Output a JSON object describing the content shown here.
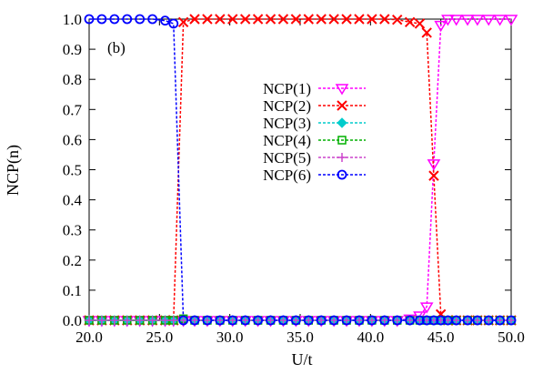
{
  "chart_data": {
    "type": "line",
    "panel_label": "(b)",
    "xlabel": "U/t",
    "ylabel": "NCP(n)",
    "xlim": [
      20.0,
      50.0
    ],
    "ylim": [
      0.0,
      1.0
    ],
    "x_ticks": [
      "20.0",
      "25.0",
      "30.0",
      "35.0",
      "40.0",
      "45.0",
      "50.0"
    ],
    "y_ticks": [
      "0.0",
      "0.1",
      "0.2",
      "0.3",
      "0.4",
      "0.5",
      "0.6",
      "0.7",
      "0.8",
      "0.9",
      "1.0"
    ],
    "x_tick_values": [
      20,
      25,
      30,
      35,
      40,
      45,
      50
    ],
    "y_tick_values": [
      0,
      0.1,
      0.2,
      0.3,
      0.4,
      0.5,
      0.6,
      0.7,
      0.8,
      0.9,
      1.0
    ],
    "legend_position": "center",
    "grid": false,
    "x": [
      20.0,
      20.9,
      21.8,
      22.7,
      23.6,
      24.5,
      25.4,
      26.0,
      26.7,
      27.5,
      28.4,
      29.3,
      30.2,
      31.1,
      32.0,
      32.9,
      33.8,
      34.7,
      35.6,
      36.5,
      37.4,
      38.3,
      39.2,
      40.1,
      41.0,
      41.9,
      42.8,
      43.5,
      44.0,
      44.5,
      45.0,
      45.5,
      46.1,
      46.9,
      47.6,
      48.4,
      49.2,
      50.0
    ],
    "series": [
      {
        "name": "NCP(1)",
        "color": "#ff00ff",
        "marker": "triangle-down",
        "values": [
          0,
          0,
          0,
          0,
          0,
          0,
          0,
          0,
          0,
          0,
          0,
          0,
          0,
          0,
          0,
          0,
          0,
          0,
          0,
          0,
          0,
          0,
          0,
          0,
          0,
          0,
          0.005,
          0.015,
          0.045,
          0.52,
          0.98,
          1.0,
          1.0,
          1.0,
          1.0,
          1.0,
          1.0,
          1.0
        ]
      },
      {
        "name": "NCP(2)",
        "color": "#ff0000",
        "marker": "x",
        "values": [
          0,
          0,
          0,
          0,
          0,
          0,
          0,
          0,
          0.99,
          1.0,
          1.0,
          1.0,
          1.0,
          1.0,
          1.0,
          1.0,
          1.0,
          1.0,
          1.0,
          1.0,
          1.0,
          1.0,
          1.0,
          1.0,
          1.0,
          0.998,
          0.99,
          0.985,
          0.955,
          0.48,
          0.02,
          0,
          0,
          0,
          0,
          0,
          0,
          0
        ]
      },
      {
        "name": "NCP(3)",
        "color": "#00cccc",
        "marker": "diamond",
        "values": [
          0,
          0,
          0,
          0,
          0,
          0,
          0,
          0,
          0,
          0,
          0,
          0,
          0,
          0,
          0,
          0,
          0,
          0,
          0,
          0,
          0,
          0,
          0,
          0,
          0,
          0,
          0,
          0,
          0,
          0,
          0,
          0,
          0,
          0,
          0,
          0,
          0,
          0
        ]
      },
      {
        "name": "NCP(4)",
        "color": "#00b000",
        "marker": "square",
        "values": [
          0,
          0,
          0,
          0,
          0,
          0,
          0,
          0,
          0.005,
          0,
          0,
          0,
          0,
          0,
          0,
          0,
          0,
          0,
          0,
          0,
          0,
          0,
          0,
          0,
          0,
          0,
          0,
          0,
          0,
          0,
          0,
          0,
          0,
          0,
          0,
          0,
          0,
          0
        ]
      },
      {
        "name": "NCP(5)",
        "color": "#cc44cc",
        "marker": "plus",
        "values": [
          0,
          0,
          0,
          0,
          0,
          0,
          0,
          0,
          0,
          0,
          0,
          0,
          0,
          0,
          0,
          0,
          0,
          0,
          0,
          0,
          0,
          0,
          0,
          0,
          0,
          0,
          0,
          0,
          0,
          0,
          0,
          0,
          0,
          0,
          0,
          0,
          0,
          0
        ]
      },
      {
        "name": "NCP(6)",
        "color": "#0000ff",
        "marker": "circle",
        "values": [
          1.0,
          1.0,
          1.0,
          1.0,
          1.0,
          1.0,
          0.995,
          0.985,
          0,
          0,
          0,
          0,
          0,
          0,
          0,
          0,
          0,
          0,
          0,
          0,
          0,
          0,
          0,
          0,
          0,
          0,
          0,
          0,
          0,
          0,
          0,
          0,
          0,
          0,
          0,
          0,
          0,
          0
        ]
      }
    ]
  }
}
